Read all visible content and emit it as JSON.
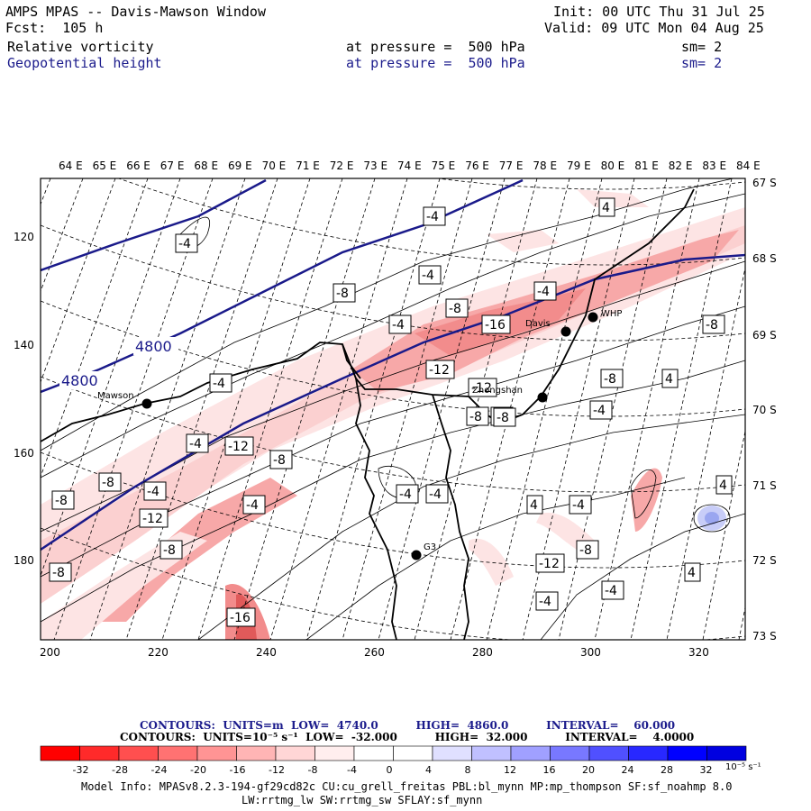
{
  "header": {
    "title": "AMPS MPAS -- Davis-Mawson Window",
    "forecast": "Fcst:  105 h",
    "init": "Init: 00 UTC Thu 31 Jul 25",
    "valid": "Valid: 09 UTC Mon 04 Aug 25",
    "field1": {
      "name": "Relative vorticity",
      "level": "at pressure =  500 hPa",
      "sm": "sm= 2"
    },
    "field2": {
      "name": "Geopotential height",
      "level": "at pressure =  500 hPa",
      "sm": "sm= 2"
    }
  },
  "map": {
    "top_lon_labels": [
      "64 E",
      "65 E",
      "66 E",
      "67 E",
      "68 E",
      "69 E",
      "70 E",
      "71 E",
      "72 E",
      "73 E",
      "74 E",
      "75 E",
      "76 E",
      "77 E",
      "78 E",
      "79 E",
      "80 E",
      "81 E",
      "82 E",
      "83 E",
      "84 E"
    ],
    "right_lat_labels": [
      "67 S",
      "68 S",
      "69 S",
      "70 S",
      "71 S",
      "72 S",
      "73 S"
    ],
    "left_y_labels": [
      "120",
      "140",
      "160",
      "180"
    ],
    "bottom_x_labels": [
      "200",
      "220",
      "240",
      "260",
      "280",
      "300",
      "320"
    ],
    "stations": [
      {
        "name": "Mawson"
      },
      {
        "name": "Davis"
      },
      {
        "name": "WHP"
      },
      {
        "name": "Zhongshan"
      },
      {
        "name": "G3"
      }
    ],
    "height_labels": [
      "4800",
      "4800"
    ],
    "vorticity_labels": [
      "-4",
      "-4",
      "-4",
      "-8",
      "-4",
      "-8",
      "-4",
      "-12",
      "-16",
      "-8",
      "-4",
      "-12",
      "-12",
      "-8",
      "-8",
      "-8",
      "-4",
      "-4",
      "-12",
      "-8",
      "-4",
      "-8",
      "-8",
      "-4",
      "-8",
      "-12",
      "-4",
      "-4",
      "4",
      "-4",
      "4",
      "4",
      "4",
      "-8",
      "-8",
      "-4",
      "-4",
      "-8",
      "-16",
      "4"
    ],
    "colors": {
      "height_contour": "#1a1a8a",
      "coast": "#000000",
      "neg_light": "#fde4e4",
      "neg_mid": "#f9b8b8",
      "neg_strong": "#f28c8c",
      "neg_max": "#e05a5a",
      "pos": "#9aa6f0"
    }
  },
  "contours_info": {
    "line1": "CONTOURS:  UNITS=m  LOW=  4740.0          HIGH=  4860.0          INTERVAL=    60.000",
    "line2": "CONTOURS:  UNITS=10⁻⁵ s⁻¹  LOW=  -32.000          HIGH=  32.000          INTERVAL=    4.0000"
  },
  "colorbar": {
    "colors": [
      "#ff0000",
      "#ff2a2a",
      "#ff4f4f",
      "#ff7272",
      "#ff9494",
      "#ffb5b5",
      "#ffd6d6",
      "#ffeeee",
      "#ffffff",
      "#ffffff",
      "#e0e0ff",
      "#c0c0ff",
      "#a0a0ff",
      "#7878ff",
      "#5050ff",
      "#2828ff",
      "#0000ff",
      "#0000e0"
    ],
    "ticks": [
      "-32",
      "-28",
      "-24",
      "-20",
      "-16",
      "-12",
      "-8",
      "-4",
      "0",
      "4",
      "8",
      "12",
      "16",
      "20",
      "24",
      "28",
      "32"
    ],
    "unit": "10⁻⁵ s⁻¹"
  },
  "model_info": {
    "line1": "Model Info: MPASv8.2.3-194-gf29cd82c CU:cu_grell_freitas PBL:bl_mynn MP:mp_thompson SF:sf_noahmp 8.0",
    "line2": "LW:rrtmg_lw SW:rrtmg_sw SFLAY:sf_mynn"
  }
}
